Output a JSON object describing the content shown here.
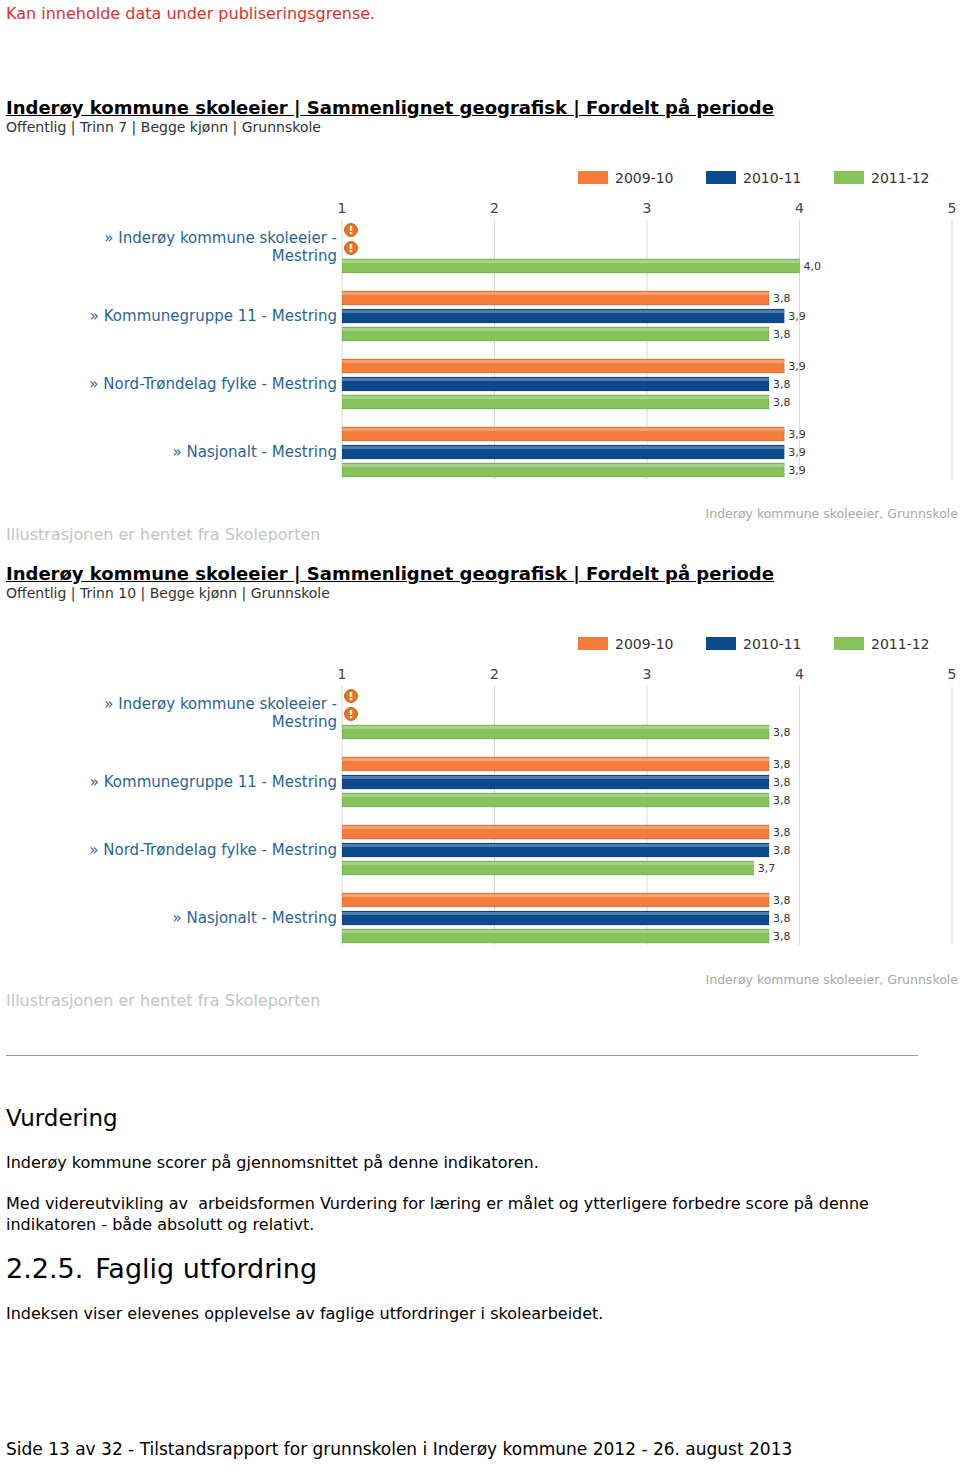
{
  "header": {
    "notice": "Kan inneholde data under publiseringsgrense."
  },
  "chart_data": [
    {
      "type": "bar",
      "orientation": "horizontal",
      "title": "Inderøy kommune skoleeier | Sammenlignet geografisk | Fordelt på periode",
      "subtitle": "Offentlig | Trinn 7 | Begge kjønn | Grunnskole",
      "categories": [
        "» Inderøy kommune skoleeier - Mestring",
        "» Kommunegruppe 11 - Mestring",
        "» Nord-Trøndelag fylke - Mestring",
        "» Nasjonalt - Mestring"
      ],
      "series": [
        {
          "name": "2009-10",
          "color": "#f47d3b",
          "values": [
            null,
            3.8,
            3.9,
            3.9
          ],
          "value_labels": [
            null,
            "3,8",
            "3,9",
            "3,9"
          ]
        },
        {
          "name": "2010-11",
          "color": "#0b4a8c",
          "values": [
            null,
            3.9,
            3.8,
            3.9
          ],
          "value_labels": [
            null,
            "3,9",
            "3,8",
            "3,9"
          ]
        },
        {
          "name": "2011-12",
          "color": "#86c35b",
          "values": [
            4.0,
            3.8,
            3.8,
            3.9
          ],
          "value_labels": [
            "4,0",
            "3,8",
            "3,8",
            "3,9"
          ]
        }
      ],
      "xlim": [
        1,
        5
      ],
      "xticks": [
        1,
        2,
        3,
        4,
        5
      ],
      "grid": true,
      "legend": "top-right",
      "data_labels": true,
      "annotations": [
        "Illustrasjonen er hentet fra Skoleporten",
        "Inderøy kommune skoleeier, Grunnskole"
      ]
    },
    {
      "type": "bar",
      "orientation": "horizontal",
      "title": "Inderøy kommune skoleeier | Sammenlignet geografisk | Fordelt på periode",
      "subtitle": "Offentlig | Trinn 10 | Begge kjønn | Grunnskole",
      "categories": [
        "» Inderøy kommune skoleeier - Mestring",
        "» Kommunegruppe 11 - Mestring",
        "» Nord-Trøndelag fylke - Mestring",
        "» Nasjonalt - Mestring"
      ],
      "series": [
        {
          "name": "2009-10",
          "color": "#f47d3b",
          "values": [
            null,
            3.8,
            3.8,
            3.8
          ],
          "value_labels": [
            null,
            "3,8",
            "3,8",
            "3,8"
          ]
        },
        {
          "name": "2010-11",
          "color": "#0b4a8c",
          "values": [
            null,
            3.8,
            3.8,
            3.8
          ],
          "value_labels": [
            null,
            "3,8",
            "3,8",
            "3,8"
          ]
        },
        {
          "name": "2011-12",
          "color": "#86c35b",
          "values": [
            3.8,
            3.8,
            3.7,
            3.8
          ],
          "value_labels": [
            "3,8",
            "3,8",
            "3,7",
            "3,8"
          ]
        }
      ],
      "xlim": [
        1,
        5
      ],
      "xticks": [
        1,
        2,
        3,
        4,
        5
      ],
      "grid": true,
      "legend": "top-right",
      "data_labels": true,
      "annotations": [
        "Illustrasjonen er hentet fra Skoleporten",
        "Inderøy kommune skoleeier, Grunnskole"
      ]
    }
  ],
  "body": {
    "heading": "Vurdering",
    "paragraphs": [
      "Inderøy kommune scorer på gjennomsnittet på denne indikatoren.",
      "Med videreutvikling av  arbeidsformen Vurdering for læring er målet og ytterligere forbedre score på denne indikatoren - både absolutt og relativt."
    ],
    "section": {
      "number": "2.2.5.",
      "title": "Faglig utfordring",
      "text": "Indeksen viser elevenes opplevelse av faglige utfordringer i skolearbeidet."
    }
  },
  "footer": {
    "text": "Side 13 av 32 - Tilstandsrapport for grunnskolen i Inderøy kommune 2012 - 26. august 2013"
  }
}
